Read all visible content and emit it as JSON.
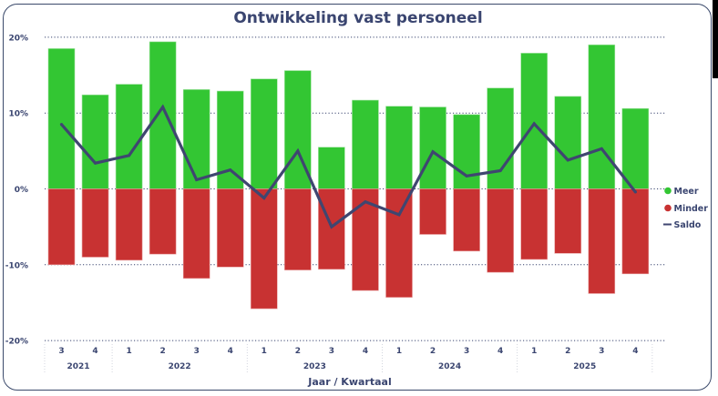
{
  "chart_data": {
    "type": "bar",
    "title": "Ontwikkeling vast personeel",
    "xlabel": "Jaar / Kwartaal",
    "ylabel": "",
    "ylim": [
      -20,
      20
    ],
    "yticks": [
      20,
      10,
      0,
      -10,
      -20
    ],
    "ytick_labels": [
      "20%",
      "10%",
      "0%",
      "-10%",
      "-20%"
    ],
    "grid": true,
    "legend_position": "right",
    "categories": [
      "3",
      "4",
      "1",
      "2",
      "3",
      "4",
      "1",
      "2",
      "3",
      "4",
      "1",
      "2",
      "3",
      "4",
      "1",
      "2",
      "3",
      "4"
    ],
    "year_groups": [
      {
        "label": "2021",
        "count": 2
      },
      {
        "label": "2022",
        "count": 4
      },
      {
        "label": "2023",
        "count": 4
      },
      {
        "label": "2024",
        "count": 4
      },
      {
        "label": "2025",
        "count": 4
      }
    ],
    "series": [
      {
        "name": "Meer",
        "kind": "bar",
        "color": "#33c633",
        "values": [
          18.5,
          12.4,
          13.8,
          19.4,
          13.1,
          12.9,
          14.5,
          15.6,
          5.5,
          11.7,
          10.9,
          10.8,
          9.8,
          13.3,
          17.9,
          12.2,
          19.0,
          10.6
        ]
      },
      {
        "name": "Minder",
        "kind": "bar",
        "color": "#c83232",
        "values": [
          -10.0,
          -9.0,
          -9.4,
          -8.6,
          -11.8,
          -10.3,
          -15.8,
          -10.7,
          -10.6,
          -13.4,
          -14.3,
          -6.0,
          -8.2,
          -11.0,
          -9.3,
          -8.5,
          -13.8,
          -11.2
        ]
      },
      {
        "name": "Saldo",
        "kind": "line",
        "color": "#3f4670",
        "values": [
          8.5,
          3.4,
          4.4,
          10.8,
          1.2,
          2.5,
          -1.2,
          5.0,
          -5.0,
          -1.7,
          -3.4,
          4.9,
          1.7,
          2.4,
          8.6,
          3.8,
          5.3,
          -0.4
        ]
      }
    ]
  },
  "colors": {
    "text": "#3a4570",
    "grid": "#3a4570",
    "frame": "#3b4a6b"
  }
}
